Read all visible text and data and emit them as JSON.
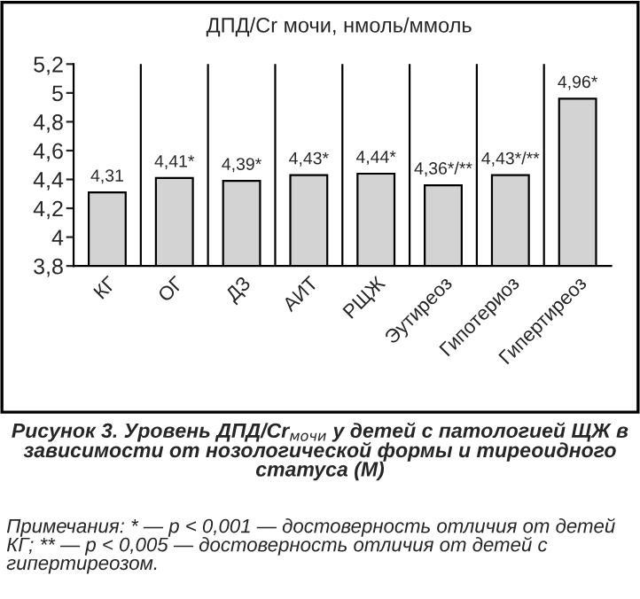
{
  "chart_data": {
    "type": "bar",
    "title": "ДПД/Cr мочи, нмоль/ммоль",
    "categories": [
      "КГ",
      "ОГ",
      "ДЗ",
      "АИТ",
      "РЩЖ",
      "Эутиреоз",
      "Гипотериоз",
      "Гипертиреоз"
    ],
    "values": [
      4.31,
      4.41,
      4.39,
      4.43,
      4.44,
      4.36,
      4.43,
      4.96
    ],
    "value_labels": [
      "4,31",
      "4,41*",
      "4,39*",
      "4,43*",
      "4,44*",
      "4,36*/**",
      "4,43*/**",
      "4,96*"
    ],
    "color": "#d3d3d3",
    "ylim": [
      3.8,
      5.2
    ],
    "yticks": [
      {
        "value": 3.8,
        "label": "3,8"
      },
      {
        "value": 4,
        "label": "4"
      },
      {
        "value": 4.2,
        "label": "4,2"
      },
      {
        "value": 4.4,
        "label": "4,4"
      },
      {
        "value": 4.6,
        "label": "4,6"
      },
      {
        "value": 4.8,
        "label": "4,8"
      },
      {
        "value": 5,
        "label": "5"
      },
      {
        "value": 5.2,
        "label": "5,2"
      }
    ],
    "grid": "x",
    "annotations": [
      "Рисунок 3. Уровень ДПД/Cr$_{мочи}$ у детей с патологией ЩЖ в зависимости от нозологической формы и тиреоидного статуса (М)",
      "Примечания: * — p < 0,001 — достоверность отличия от детей КГ; ** — p < 0,005 — достоверность отличия от детей с гипертиреозом."
    ]
  }
}
